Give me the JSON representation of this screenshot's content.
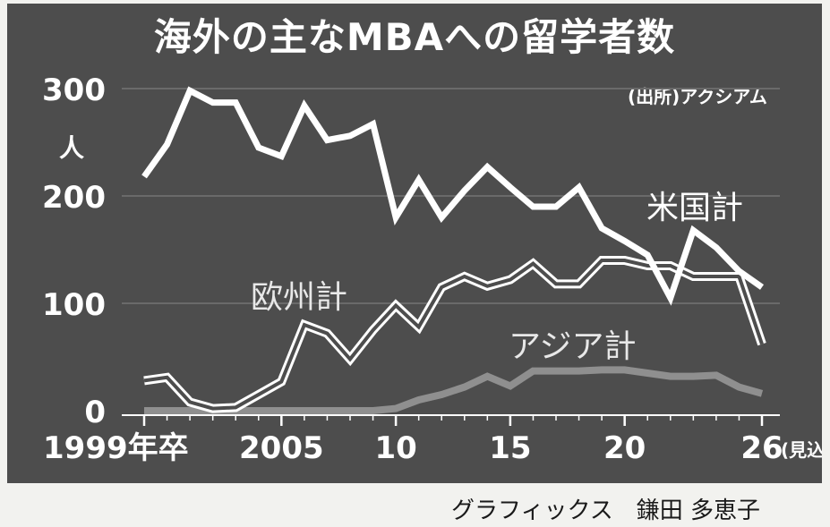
{
  "header": {
    "title": "海外の主なMBAへの留学者数",
    "source": "(出所)アクシアム"
  },
  "credit": "グラフィックス　鎌田 多恵子",
  "colors": {
    "background": "#4d4d4d",
    "us": "#ffffff",
    "europe": "#ffffff",
    "asia": "#8f8f8f",
    "text": "#ffffff"
  },
  "chart_data": {
    "type": "line",
    "title": "海外の主なMBAへの留学者数",
    "ylabel": "人",
    "xlabel": "",
    "ylim": [
      0,
      300
    ],
    "yticks": [
      0,
      100,
      200,
      300
    ],
    "xlim": [
      1999,
      2026
    ],
    "xticks": [
      {
        "value": 1999,
        "label": "1999年卒"
      },
      {
        "value": 2005,
        "label": "2005"
      },
      {
        "value": 2010,
        "label": "10"
      },
      {
        "value": 2015,
        "label": "15"
      },
      {
        "value": 2020,
        "label": "20"
      },
      {
        "value": 2026,
        "label": "26"
      }
    ],
    "projection_note": "(見込み)",
    "x": [
      1999,
      2000,
      2001,
      2002,
      2003,
      2004,
      2005,
      2006,
      2007,
      2008,
      2009,
      2010,
      2011,
      2012,
      2013,
      2014,
      2015,
      2016,
      2017,
      2018,
      2019,
      2020,
      2021,
      2022,
      2023,
      2024,
      2025,
      2026
    ],
    "series": [
      {
        "name": "米国計",
        "style": "solid",
        "values": [
          218,
          248,
          298,
          287,
          287,
          245,
          237,
          284,
          252,
          256,
          267,
          180,
          215,
          180,
          205,
          227,
          208,
          190,
          190,
          208,
          170,
          158,
          145,
          105,
          168,
          152,
          130,
          115
        ]
      },
      {
        "name": "欧州計",
        "style": "double",
        "values": [
          28,
          31,
          8,
          2,
          3,
          15,
          27,
          80,
          72,
          48,
          75,
          98,
          78,
          115,
          125,
          116,
          122,
          137,
          118,
          118,
          140,
          140,
          135,
          135,
          125,
          125,
          125,
          62
        ]
      },
      {
        "name": "アジア計",
        "style": "solid",
        "values": [
          0,
          0,
          0,
          0,
          0,
          0,
          0,
          0,
          0,
          0,
          0,
          2,
          10,
          15,
          22,
          32,
          23,
          37,
          37,
          37,
          38,
          38,
          35,
          32,
          32,
          33,
          22,
          16
        ]
      }
    ]
  }
}
